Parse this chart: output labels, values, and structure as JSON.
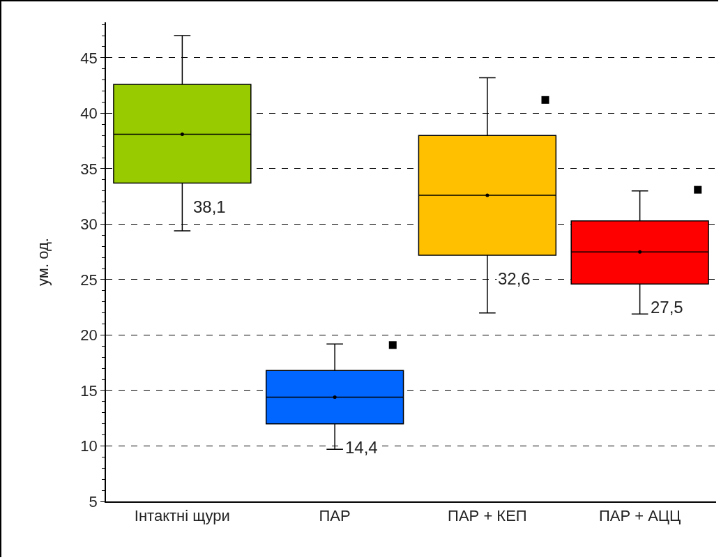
{
  "chart_data": {
    "type": "box",
    "ylabel": "ум. од.",
    "categories": [
      "Інтактні щури",
      "ПАР",
      "ПАР + КЕП",
      "ПАР + АЦЦ"
    ],
    "colors": [
      "#99cc00",
      "#0066ff",
      "#ffc000",
      "#ff0000"
    ],
    "boxes": [
      {
        "low": 29.4,
        "q1": 33.7,
        "median": 38.1,
        "q3": 42.6,
        "high": 47.0,
        "mean": 38.1
      },
      {
        "low": 9.7,
        "q1": 12.0,
        "median": 14.4,
        "q3": 16.8,
        "high": 19.2,
        "mean": 14.4,
        "outliers": [
          19.1
        ]
      },
      {
        "low": 22.0,
        "q1": 27.2,
        "median": 32.6,
        "q3": 38.0,
        "high": 43.2,
        "mean": 32.6,
        "outliers": [
          41.2
        ]
      },
      {
        "low": 21.9,
        "q1": 24.6,
        "median": 27.5,
        "q3": 30.3,
        "high": 33.0,
        "mean": 27.5,
        "outliers": [
          33.1
        ]
      }
    ],
    "annotations": [
      "38,1",
      "14,4",
      "32,6",
      "27,5"
    ],
    "ylim": [
      5,
      48.2
    ],
    "yticks": [
      5,
      10,
      15,
      20,
      25,
      30,
      35,
      40,
      45
    ],
    "grid": "y",
    "marker": "square"
  }
}
